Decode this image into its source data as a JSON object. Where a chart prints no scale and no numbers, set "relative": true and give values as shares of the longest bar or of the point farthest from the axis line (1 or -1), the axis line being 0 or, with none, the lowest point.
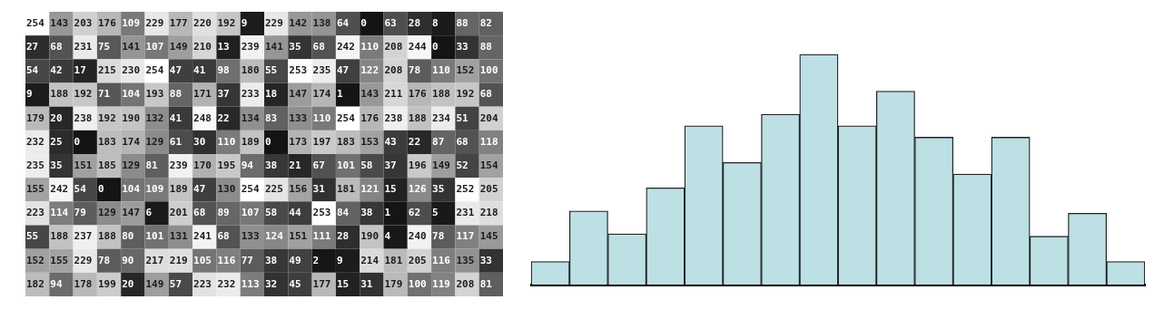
{
  "chart_data": [
    {
      "type": "heatmap",
      "data_labels": true,
      "categories": [
        null,
        null,
        null,
        null,
        null,
        null,
        null,
        null,
        null,
        null,
        null,
        null,
        null,
        null,
        null,
        null,
        null,
        null,
        null,
        null
      ],
      "y_categories": [
        null,
        null,
        null,
        null,
        null,
        null,
        null,
        null,
        null,
        null,
        null,
        null
      ],
      "cells": [
        [
          254,
          143,
          203,
          176,
          109,
          229,
          177,
          220,
          192,
          9,
          229,
          142,
          138,
          64,
          0,
          63,
          28,
          8,
          88,
          82
        ],
        [
          27,
          68,
          231,
          75,
          141,
          107,
          149,
          210,
          13,
          239,
          141,
          35,
          68,
          242,
          110,
          208,
          244,
          0,
          33,
          88
        ],
        [
          54,
          42,
          17,
          215,
          230,
          254,
          47,
          41,
          98,
          180,
          55,
          253,
          235,
          47,
          122,
          208,
          78,
          110,
          152,
          100
        ],
        [
          9,
          188,
          192,
          71,
          104,
          193,
          88,
          171,
          37,
          233,
          18,
          147,
          174,
          1,
          143,
          211,
          176,
          188,
          192,
          68
        ],
        [
          179,
          20,
          238,
          192,
          190,
          132,
          41,
          248,
          22,
          134,
          83,
          133,
          110,
          254,
          176,
          238,
          188,
          234,
          51,
          204
        ],
        [
          232,
          25,
          0,
          183,
          174,
          129,
          61,
          30,
          110,
          189,
          0,
          173,
          197,
          183,
          153,
          43,
          22,
          87,
          68,
          118
        ],
        [
          235,
          35,
          151,
          185,
          129,
          81,
          239,
          170,
          195,
          94,
          38,
          21,
          67,
          101,
          58,
          37,
          196,
          149,
          52,
          154
        ],
        [
          155,
          242,
          54,
          0,
          104,
          109,
          189,
          47,
          130,
          254,
          225,
          156,
          31,
          181,
          121,
          15,
          126,
          35,
          252,
          205
        ],
        [
          223,
          114,
          79,
          129,
          147,
          6,
          201,
          68,
          89,
          107,
          58,
          44,
          253,
          84,
          38,
          1,
          62,
          5,
          231,
          218
        ],
        [
          55,
          188,
          237,
          188,
          80,
          101,
          131,
          241,
          68,
          133,
          124,
          151,
          111,
          28,
          190,
          4,
          240,
          78,
          117,
          145
        ],
        [
          152,
          155,
          229,
          78,
          90,
          217,
          219,
          105,
          116,
          77,
          38,
          49,
          2,
          9,
          214,
          181,
          205,
          116,
          135,
          33
        ],
        [
          182,
          94,
          178,
          199,
          20,
          149,
          57,
          223,
          232,
          113,
          32,
          45,
          177,
          15,
          31,
          179,
          100,
          119,
          208,
          81
        ]
      ]
    },
    {
      "type": "bar",
      "relative": true,
      "color": "#bce0e4",
      "categories": [
        null,
        null,
        null,
        null,
        null,
        null,
        null,
        null,
        null,
        null,
        null,
        null,
        null,
        null,
        null,
        null
      ],
      "values": [
        0.1,
        0.32,
        0.22,
        0.42,
        0.69,
        0.53,
        0.74,
        1,
        0.69,
        0.84,
        0.64,
        0.48,
        0.64,
        0.21,
        0.31,
        0.1
      ]
    }
  ]
}
